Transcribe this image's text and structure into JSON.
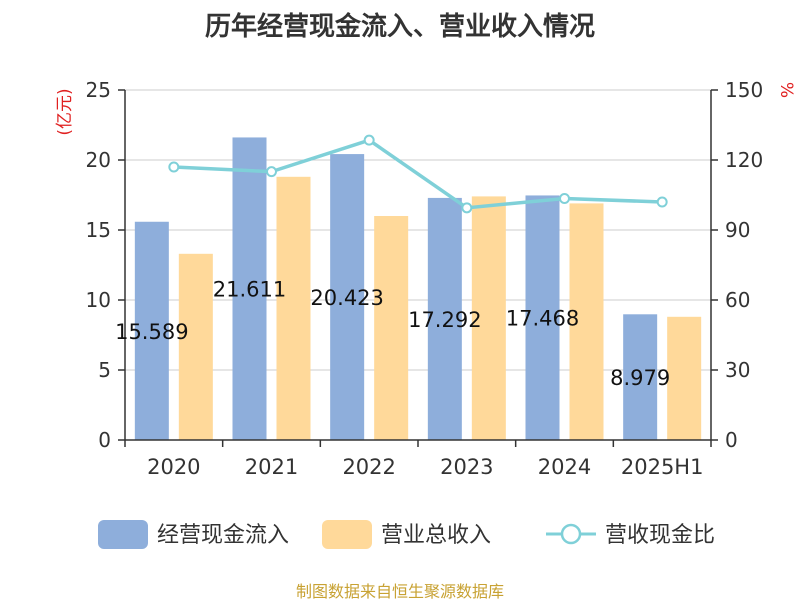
{
  "chart_data": {
    "type": "bar",
    "title": "历年经营现金流入、营业收入情况",
    "categories": [
      "2020",
      "2021",
      "2022",
      "2023",
      "2024",
      "2025H1"
    ],
    "series": [
      {
        "name": "经营现金流入",
        "kind": "bar",
        "axis": "left",
        "color": "#8eaedb",
        "values": [
          15.589,
          21.611,
          20.423,
          17.292,
          17.468,
          8.979
        ],
        "labels": [
          "15.589",
          "21.611",
          "20.423",
          "17.292",
          "17.468",
          "8.979"
        ]
      },
      {
        "name": "营业总收入",
        "kind": "bar",
        "axis": "left",
        "color": "#ffd99a",
        "values": [
          13.3,
          18.8,
          16.0,
          17.4,
          16.9,
          8.8
        ]
      },
      {
        "name": "营收现金比",
        "kind": "line",
        "axis": "right",
        "color": "#7fd0d8",
        "values": [
          117,
          115,
          128.5,
          99.5,
          103.5,
          102
        ]
      }
    ],
    "y_left": {
      "unit": "(亿元)",
      "min": 0,
      "max": 25,
      "ticks": [
        0,
        5,
        10,
        15,
        20,
        25
      ]
    },
    "y_right": {
      "unit": "%",
      "min": 0,
      "max": 150,
      "ticks": [
        0,
        30,
        60,
        90,
        120,
        150
      ]
    },
    "grid": true,
    "legend_position": "bottom"
  },
  "source": "制图数据来自恒生聚源数据库"
}
